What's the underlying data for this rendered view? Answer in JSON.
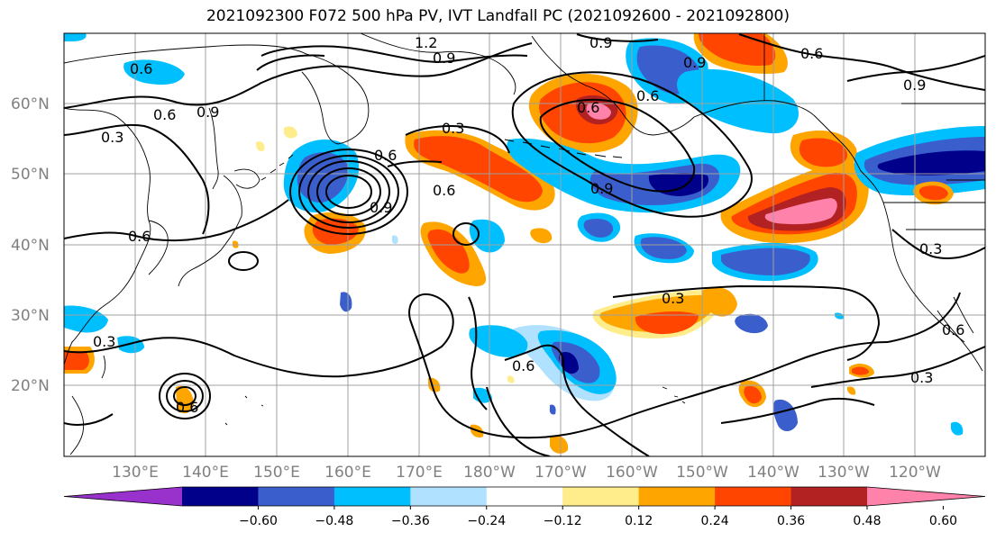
{
  "title": "2021092300 F072 500 hPa PV, IVT Landfall PC (2021092600 - 2021092800)",
  "map": {
    "lat_labels": [
      "60°N",
      "50°N",
      "40°N",
      "30°N",
      "20°N"
    ],
    "lon_labels": [
      "130°E",
      "140°E",
      "150°E",
      "160°E",
      "170°E",
      "180°W",
      "170°W",
      "160°W",
      "150°W",
      "140°W",
      "130°W",
      "120°W"
    ],
    "contour_labels": [
      "1.2",
      "0.9",
      "0.9",
      "0.6",
      "0.6",
      "0.9",
      "0.6",
      "0.3",
      "0.3",
      "0.6",
      "0.6",
      "0.6",
      "0.9",
      "0.9",
      "0.6",
      "0.9",
      "0.6",
      "0.3",
      "0.3",
      "0.6",
      "0.3",
      "0.3",
      "0.9",
      "0.6",
      "0.6"
    ]
  },
  "colorbar": {
    "ticks": [
      "−0.60",
      "−0.48",
      "−0.36",
      "−0.24",
      "−0.12",
      "0.12",
      "0.24",
      "0.36",
      "0.48",
      "0.60"
    ],
    "colors": [
      "#9932cc",
      "#00008b",
      "#3a5fcd",
      "#00bfff",
      "#b0e2ff",
      "#ffffff",
      "#ffec8b",
      "#ffa500",
      "#ff4500",
      "#b22222",
      "#ff82ab"
    ]
  }
}
